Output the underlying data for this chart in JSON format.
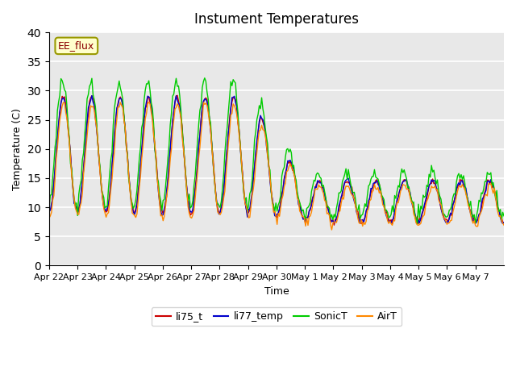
{
  "title": "Instument Temperatures",
  "xlabel": "Time",
  "ylabel": "Temperature (C)",
  "ylim": [
    0,
    40
  ],
  "yticks": [
    0,
    5,
    10,
    15,
    20,
    25,
    30,
    35,
    40
  ],
  "xtick_labels": [
    "Apr 22",
    "Apr 23",
    "Apr 24",
    "Apr 25",
    "Apr 26",
    "Apr 27",
    "Apr 28",
    "Apr 29",
    "Apr 30",
    "May 1",
    "May 2",
    "May 3",
    "May 4",
    "May 5",
    "May 6",
    "May 7"
  ],
  "annotation_text": "EE_flux",
  "bg_color": "#e8e8e8",
  "line_colors": {
    "li75_t": "#cc0000",
    "li77_temp": "#0000cc",
    "SonicT": "#00cc00",
    "AirT": "#ff8800"
  },
  "legend_labels": [
    "li75_t",
    "li77_temp",
    "SonicT",
    "AirT"
  ]
}
